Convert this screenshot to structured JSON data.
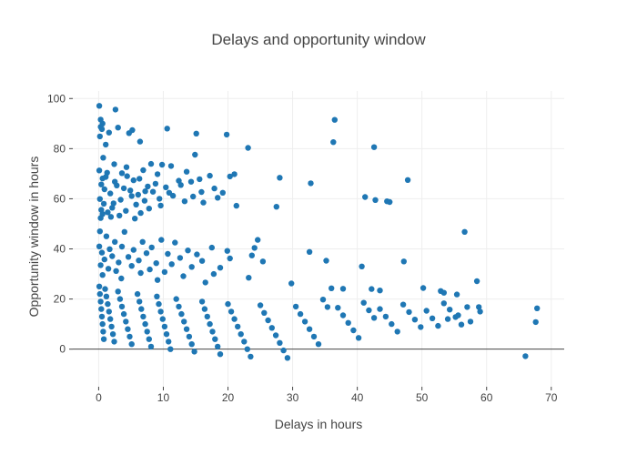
{
  "chart_data": {
    "type": "scatter",
    "title": "Delays and opportunity window",
    "xlabel": "Delays in hours",
    "ylabel": "Opportunity window in hours",
    "xlim": [
      -4,
      72
    ],
    "ylim": [
      -15,
      103
    ],
    "xticks": [
      0,
      10,
      20,
      30,
      40,
      50,
      60,
      70
    ],
    "yticks": [
      0,
      20,
      40,
      60,
      80,
      100
    ],
    "grid": true,
    "zero_line": true,
    "legend": "none",
    "marker_color": "#1f77b4",
    "series": [
      {
        "points": [
          [
            0.1,
            97.1
          ],
          [
            2.6,
            95.6
          ],
          [
            0.3,
            91.6
          ],
          [
            0.6,
            90.0
          ],
          [
            0.3,
            88.7
          ],
          [
            3.0,
            88.4
          ],
          [
            10.6,
            88.0
          ],
          [
            0.5,
            87.8
          ],
          [
            5.2,
            87.4
          ],
          [
            1.6,
            86.4
          ],
          [
            4.7,
            86.2
          ],
          [
            15.1,
            86.0
          ],
          [
            19.8,
            85.6
          ],
          [
            0.2,
            84.9
          ],
          [
            6.4,
            82.8
          ],
          [
            1.1,
            81.6
          ],
          [
            23.1,
            80.3
          ],
          [
            36.5,
            91.5
          ],
          [
            36.3,
            82.6
          ],
          [
            42.6,
            80.6
          ],
          [
            14.9,
            77.6
          ],
          [
            0.7,
            76.4
          ],
          [
            2.4,
            73.8
          ],
          [
            8.1,
            73.9
          ],
          [
            9.8,
            73.6
          ],
          [
            11.2,
            73.1
          ],
          [
            4.3,
            72.6
          ],
          [
            6.9,
            71.4
          ],
          [
            13.6,
            70.8
          ],
          [
            1.3,
            70.4
          ],
          [
            3.6,
            70.2
          ],
          [
            9.1,
            69.8
          ],
          [
            21.0,
            69.8
          ],
          [
            20.3,
            68.9
          ],
          [
            28.0,
            68.4
          ],
          [
            0.6,
            68.1
          ],
          [
            5.4,
            67.4
          ],
          [
            12.4,
            67.2
          ],
          [
            14.3,
            66.8
          ],
          [
            32.8,
            66.2
          ],
          [
            0.4,
            65.7
          ],
          [
            2.8,
            65.3
          ],
          [
            7.6,
            64.9
          ],
          [
            10.4,
            64.6
          ],
          [
            17.9,
            64.1
          ],
          [
            0.9,
            63.8
          ],
          [
            4.9,
            63.3
          ],
          [
            8.4,
            62.8
          ],
          [
            15.9,
            62.7
          ],
          [
            19.2,
            62.4
          ],
          [
            1.8,
            62.1
          ],
          [
            6.1,
            61.6
          ],
          [
            11.5,
            61.2
          ],
          [
            14.6,
            60.9
          ],
          [
            41.2,
            60.7
          ],
          [
            18.4,
            60.4
          ],
          [
            0.2,
            59.9
          ],
          [
            3.4,
            59.6
          ],
          [
            7.1,
            59.2
          ],
          [
            13.3,
            59.0
          ],
          [
            42.8,
            59.5
          ],
          [
            44.6,
            59.0
          ],
          [
            45.0,
            58.7
          ],
          [
            16.2,
            58.5
          ],
          [
            0.8,
            58.0
          ],
          [
            5.8,
            57.7
          ],
          [
            9.6,
            57.3
          ],
          [
            21.3,
            57.2
          ],
          [
            27.5,
            56.8
          ],
          [
            2.1,
            56.4
          ],
          [
            7.8,
            56.1
          ],
          [
            0.4,
            55.6
          ],
          [
            4.2,
            55.2
          ],
          [
            1.4,
            54.6
          ],
          [
            6.5,
            54.3
          ],
          [
            0.6,
            53.9
          ],
          [
            3.2,
            53.3
          ],
          [
            1.9,
            52.8
          ],
          [
            0.3,
            52.3
          ],
          [
            5.6,
            52.1
          ],
          [
            47.8,
            67.5
          ],
          [
            0.1,
            71.3
          ],
          [
            1.1,
            68.7
          ],
          [
            2.5,
            66.8
          ],
          [
            3.9,
            64.2
          ],
          [
            5.1,
            61.1
          ],
          [
            2.3,
            58.2
          ],
          [
            8.8,
            66.0
          ],
          [
            4.4,
            69.0
          ],
          [
            6.3,
            68.0
          ],
          [
            7.2,
            63.0
          ],
          [
            9.4,
            60.0
          ],
          [
            10.9,
            62.4
          ],
          [
            12.7,
            65.5
          ],
          [
            15.6,
            67.8
          ],
          [
            17.2,
            69.2
          ],
          [
            0.2,
            47.0
          ],
          [
            4.0,
            46.8
          ],
          [
            56.6,
            46.8
          ],
          [
            1.2,
            45.0
          ],
          [
            9.7,
            43.6
          ],
          [
            24.6,
            43.6
          ],
          [
            2.5,
            42.8
          ],
          [
            6.8,
            42.8
          ],
          [
            11.8,
            42.5
          ],
          [
            0.1,
            41.0
          ],
          [
            3.6,
            40.9
          ],
          [
            8.2,
            40.6
          ],
          [
            17.5,
            40.5
          ],
          [
            24.1,
            40.4
          ],
          [
            1.7,
            39.9
          ],
          [
            5.4,
            39.6
          ],
          [
            13.8,
            39.4
          ],
          [
            19.9,
            39.2
          ],
          [
            32.6,
            38.8
          ],
          [
            0.5,
            38.5
          ],
          [
            7.4,
            38.3
          ],
          [
            10.7,
            38.0
          ],
          [
            15.2,
            37.8
          ],
          [
            23.7,
            37.4
          ],
          [
            2.1,
            37.1
          ],
          [
            4.6,
            36.8
          ],
          [
            12.6,
            36.4
          ],
          [
            20.3,
            36.2
          ],
          [
            0.9,
            35.8
          ],
          [
            6.2,
            35.4
          ],
          [
            16.0,
            35.2
          ],
          [
            25.4,
            35.0
          ],
          [
            35.2,
            35.3
          ],
          [
            47.2,
            35.0
          ],
          [
            3.1,
            34.6
          ],
          [
            8.9,
            34.3
          ],
          [
            11.3,
            33.9
          ],
          [
            0.3,
            33.5
          ],
          [
            5.1,
            33.2
          ],
          [
            40.7,
            33.0
          ],
          [
            14.4,
            32.8
          ],
          [
            18.8,
            32.5
          ],
          [
            1.5,
            32.1
          ],
          [
            7.9,
            31.8
          ],
          [
            2.7,
            31.2
          ],
          [
            10.2,
            30.8
          ],
          [
            6.5,
            30.4
          ],
          [
            17.8,
            30.0
          ],
          [
            0.6,
            29.6
          ],
          [
            13.1,
            29.1
          ],
          [
            23.2,
            28.5
          ],
          [
            3.5,
            28.2
          ],
          [
            9.1,
            27.6
          ],
          [
            58.5,
            27.1
          ],
          [
            16.5,
            26.6
          ],
          [
            29.8,
            26.2
          ],
          [
            36.0,
            24.3
          ],
          [
            37.8,
            24.1
          ],
          [
            42.2,
            24.0
          ],
          [
            43.5,
            23.4
          ],
          [
            50.2,
            24.4
          ],
          [
            52.9,
            23.2
          ],
          [
            53.4,
            22.5
          ],
          [
            55.4,
            21.8
          ],
          [
            0.1,
            25.0
          ],
          [
            0.2,
            22.0
          ],
          [
            0.3,
            19.0
          ],
          [
            0.4,
            16.0
          ],
          [
            0.5,
            13.0
          ],
          [
            0.6,
            10.0
          ],
          [
            0.7,
            7.0
          ],
          [
            0.8,
            4.0
          ],
          [
            1.0,
            24.0
          ],
          [
            1.2,
            21.0
          ],
          [
            1.4,
            18.0
          ],
          [
            1.6,
            15.0
          ],
          [
            1.8,
            12.0
          ],
          [
            2.0,
            9.0
          ],
          [
            2.2,
            6.0
          ],
          [
            2.4,
            3.0
          ],
          [
            3.0,
            23.0
          ],
          [
            3.3,
            20.0
          ],
          [
            3.6,
            17.0
          ],
          [
            3.9,
            14.0
          ],
          [
            4.2,
            11.0
          ],
          [
            4.5,
            8.0
          ],
          [
            4.8,
            5.0
          ],
          [
            5.1,
            2.0
          ],
          [
            6.0,
            22.0
          ],
          [
            6.3,
            19.0
          ],
          [
            6.6,
            16.0
          ],
          [
            6.9,
            13.0
          ],
          [
            7.2,
            10.0
          ],
          [
            7.5,
            7.0
          ],
          [
            7.8,
            4.0
          ],
          [
            8.1,
            1.0
          ],
          [
            9.0,
            21.0
          ],
          [
            9.3,
            18.0
          ],
          [
            9.6,
            15.0
          ],
          [
            9.9,
            12.0
          ],
          [
            10.2,
            9.0
          ],
          [
            10.5,
            6.0
          ],
          [
            10.8,
            3.0
          ],
          [
            11.1,
            0.0
          ],
          [
            12.0,
            20.0
          ],
          [
            12.4,
            17.0
          ],
          [
            12.8,
            14.0
          ],
          [
            13.2,
            11.0
          ],
          [
            13.6,
            8.0
          ],
          [
            14.0,
            5.0
          ],
          [
            14.4,
            2.0
          ],
          [
            14.8,
            -1.0
          ],
          [
            16.0,
            19.0
          ],
          [
            16.4,
            16.0
          ],
          [
            16.8,
            13.0
          ],
          [
            17.2,
            10.0
          ],
          [
            17.6,
            7.0
          ],
          [
            18.0,
            4.0
          ],
          [
            18.4,
            1.0
          ],
          [
            18.8,
            -2.0
          ],
          [
            20.0,
            18.0
          ],
          [
            20.5,
            15.0
          ],
          [
            21.0,
            12.0
          ],
          [
            21.5,
            9.0
          ],
          [
            22.0,
            6.0
          ],
          [
            22.5,
            3.0
          ],
          [
            23.0,
            0.0
          ],
          [
            23.5,
            -3.0
          ],
          [
            25.0,
            17.5
          ],
          [
            25.6,
            14.5
          ],
          [
            26.2,
            11.5
          ],
          [
            26.8,
            8.5
          ],
          [
            27.4,
            5.5
          ],
          [
            28.0,
            2.5
          ],
          [
            28.6,
            -0.5
          ],
          [
            29.2,
            -3.5
          ],
          [
            30.5,
            17.0
          ],
          [
            31.2,
            14.0
          ],
          [
            31.9,
            11.0
          ],
          [
            32.6,
            8.0
          ],
          [
            33.3,
            5.0
          ],
          [
            34.0,
            2.0
          ],
          [
            34.7,
            19.8
          ],
          [
            35.4,
            16.8
          ],
          [
            37.0,
            16.5
          ],
          [
            37.8,
            13.5
          ],
          [
            38.6,
            10.5
          ],
          [
            39.4,
            7.5
          ],
          [
            40.2,
            4.5
          ],
          [
            41.0,
            18.5
          ],
          [
            41.8,
            15.5
          ],
          [
            42.6,
            12.5
          ],
          [
            43.5,
            16.0
          ],
          [
            44.4,
            13.0
          ],
          [
            45.3,
            10.0
          ],
          [
            46.2,
            7.0
          ],
          [
            47.1,
            17.8
          ],
          [
            48.0,
            14.8
          ],
          [
            48.9,
            11.8
          ],
          [
            49.8,
            8.8
          ],
          [
            50.7,
            15.3
          ],
          [
            51.6,
            12.3
          ],
          [
            52.5,
            9.3
          ],
          [
            53.4,
            18.3
          ],
          [
            54.3,
            15.8
          ],
          [
            55.2,
            12.8
          ],
          [
            56.1,
            9.8
          ],
          [
            57.0,
            16.8
          ],
          [
            58.8,
            16.8
          ],
          [
            66.0,
            -2.8
          ],
          [
            67.8,
            16.3
          ],
          [
            67.6,
            10.8
          ],
          [
            57.5,
            11.0
          ],
          [
            55.6,
            13.5
          ],
          [
            59.0,
            15.0
          ],
          [
            54.0,
            12.0
          ]
        ]
      }
    ]
  }
}
